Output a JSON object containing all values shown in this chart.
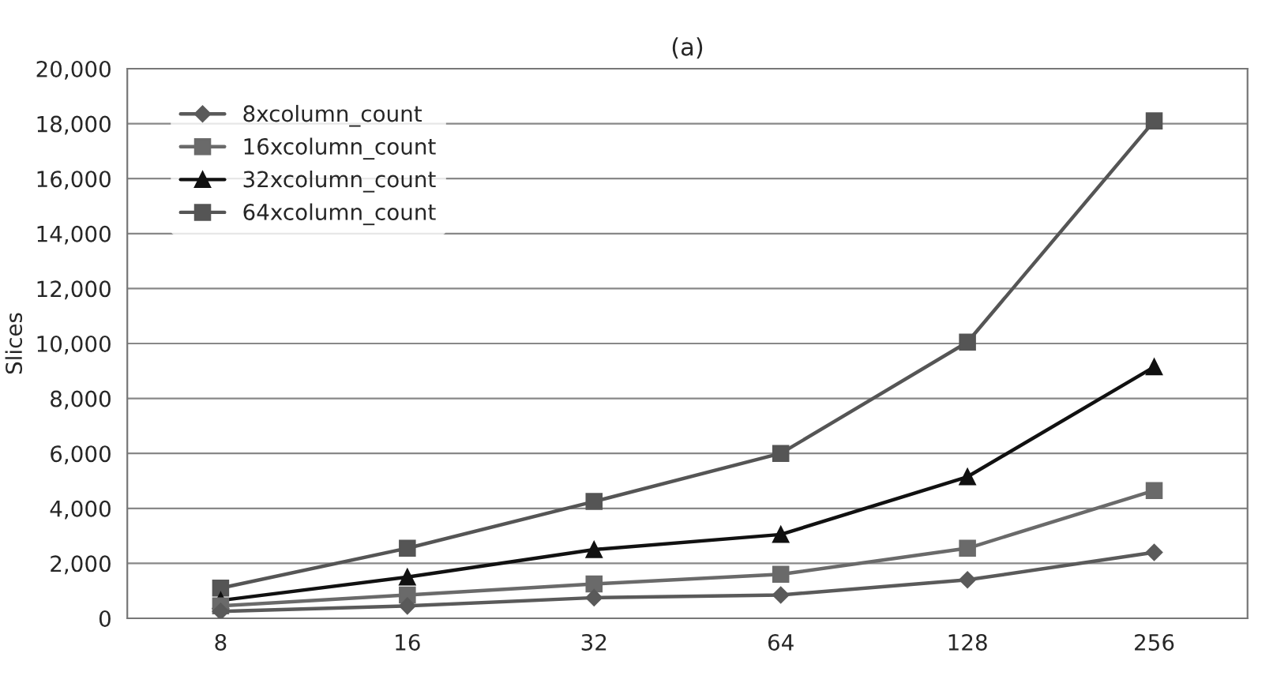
{
  "chart_data": {
    "type": "line",
    "title": "(a)",
    "ylabel": "Slices",
    "categories": [
      "8",
      "16",
      "32",
      "64",
      "128",
      "256"
    ],
    "series": [
      {
        "name": "8xcolumn_count",
        "color": "#5a5a5a",
        "marker": "diamond",
        "values": [
          250,
          450,
          750,
          850,
          1400,
          2400
        ]
      },
      {
        "name": "16xcolumn_count",
        "color": "#6a6a6a",
        "marker": "square",
        "values": [
          450,
          850,
          1250,
          1600,
          2550,
          4650
        ]
      },
      {
        "name": "32xcolumn_count",
        "color": "#111111",
        "marker": "triangle",
        "values": [
          650,
          1500,
          2500,
          3050,
          5150,
          9150
        ]
      },
      {
        "name": "64xcolumn_count",
        "color": "#555555",
        "marker": "square",
        "values": [
          1100,
          2550,
          4250,
          6000,
          10050,
          18100
        ]
      }
    ],
    "ylim": [
      0,
      20000
    ],
    "yticks": [
      {
        "value": 0,
        "label": "0"
      },
      {
        "value": 2000,
        "label": "2,000"
      },
      {
        "value": 4000,
        "label": "4,000"
      },
      {
        "value": 6000,
        "label": "6,000"
      },
      {
        "value": 8000,
        "label": "8,000"
      },
      {
        "value": 10000,
        "label": "10,000"
      },
      {
        "value": 12000,
        "label": "12,000"
      },
      {
        "value": 14000,
        "label": "14,000"
      },
      {
        "value": 16000,
        "label": "16,000"
      },
      {
        "value": 18000,
        "label": "18,000"
      },
      {
        "value": 20000,
        "label": "20,000"
      }
    ],
    "grid": "y",
    "legend": "top left",
    "line_style": "solid"
  }
}
